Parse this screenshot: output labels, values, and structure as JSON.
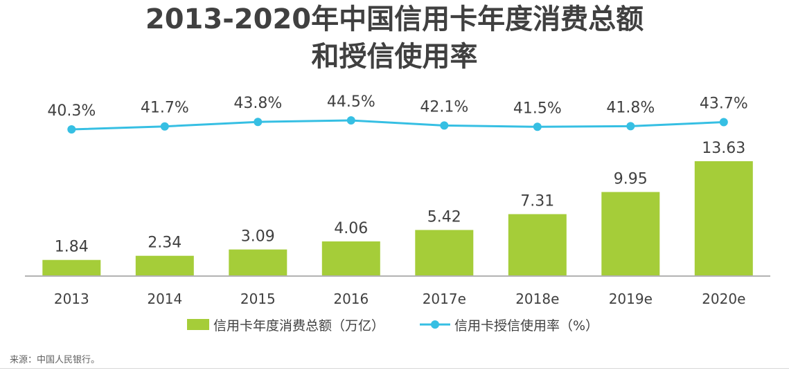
{
  "title_line1": "2013-2020年中国信用卡年度消费总额",
  "title_line2": "和授信使用率",
  "source": "来源：中国人民银行。",
  "colors": {
    "bar": "#a5cd39",
    "line": "#36bfe3",
    "text": "#404040",
    "axis": "#999999"
  },
  "chart_data": {
    "type": "bar+line",
    "categories": [
      "2013",
      "2014",
      "2015",
      "2016",
      "2017e",
      "2018e",
      "2019e",
      "2020e"
    ],
    "series": [
      {
        "name": "信用卡年度消费总额（万亿）",
        "type": "bar",
        "values": [
          1.84,
          2.34,
          3.09,
          4.06,
          5.42,
          7.31,
          9.95,
          13.63
        ],
        "labels": [
          "1.84",
          "2.34",
          "3.09",
          "4.06",
          "5.42",
          "7.31",
          "9.95",
          "13.63"
        ]
      },
      {
        "name": "信用卡授信使用率（%）",
        "type": "line",
        "values": [
          40.3,
          41.7,
          43.8,
          44.5,
          42.1,
          41.5,
          41.8,
          43.7
        ],
        "labels": [
          "40.3%",
          "41.7%",
          "43.8%",
          "44.5%",
          "42.1%",
          "41.5%",
          "41.8%",
          "43.7%"
        ]
      }
    ],
    "bar_ylim": [
      0,
      13.63
    ],
    "line_ylim": [
      40.3,
      44.5
    ],
    "legend_position": "bottom-center"
  }
}
